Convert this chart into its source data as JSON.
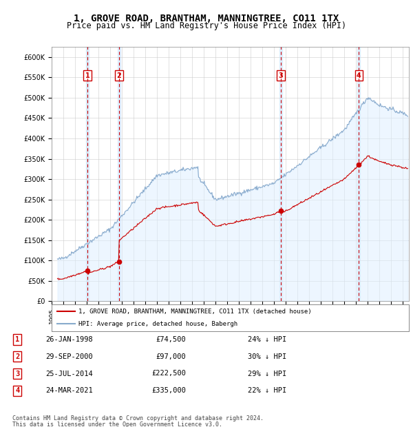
{
  "title": "1, GROVE ROAD, BRANTHAM, MANNINGTREE, CO11 1TX",
  "subtitle": "Price paid vs. HM Land Registry's House Price Index (HPI)",
  "title_fontsize": 10,
  "subtitle_fontsize": 8.5,
  "ylim": [
    0,
    625000
  ],
  "yticks": [
    0,
    50000,
    100000,
    150000,
    200000,
    250000,
    300000,
    350000,
    400000,
    450000,
    500000,
    550000,
    600000
  ],
  "ytick_labels": [
    "£0",
    "£50K",
    "£100K",
    "£150K",
    "£200K",
    "£250K",
    "£300K",
    "£350K",
    "£400K",
    "£450K",
    "£500K",
    "£550K",
    "£600K"
  ],
  "xlim_start": 1995.5,
  "xlim_end": 2025.5,
  "transactions": [
    {
      "num": 1,
      "date_year": 1998.07,
      "price": 74500,
      "label": "26-JAN-1998",
      "hpi_pct": "24%"
    },
    {
      "num": 2,
      "date_year": 2000.75,
      "price": 97000,
      "label": "29-SEP-2000",
      "hpi_pct": "30%"
    },
    {
      "num": 3,
      "date_year": 2014.56,
      "price": 222500,
      "label": "25-JUL-2014",
      "hpi_pct": "29%"
    },
    {
      "num": 4,
      "date_year": 2021.23,
      "price": 335000,
      "label": "24-MAR-2021",
      "hpi_pct": "22%"
    }
  ],
  "sale_line_color": "#cc0000",
  "hpi_line_color": "#88aacc",
  "vline_color": "#cc0000",
  "vline_shade_color": "#ddeeff",
  "box_color": "#cc0000",
  "legend_line1": "1, GROVE ROAD, BRANTHAM, MANNINGTREE, CO11 1TX (detached house)",
  "legend_line2": "HPI: Average price, detached house, Babergh",
  "footer_line1": "Contains HM Land Registry data © Crown copyright and database right 2024.",
  "footer_line2": "This data is licensed under the Open Government Licence v3.0.",
  "table_rows": [
    [
      1,
      "26-JAN-1998",
      "£74,500",
      "24% ↓ HPI"
    ],
    [
      2,
      "29-SEP-2000",
      "£97,000",
      "30% ↓ HPI"
    ],
    [
      3,
      "25-JUL-2014",
      "£222,500",
      "29% ↓ HPI"
    ],
    [
      4,
      "24-MAR-2021",
      "£335,000",
      "22% ↓ HPI"
    ]
  ]
}
